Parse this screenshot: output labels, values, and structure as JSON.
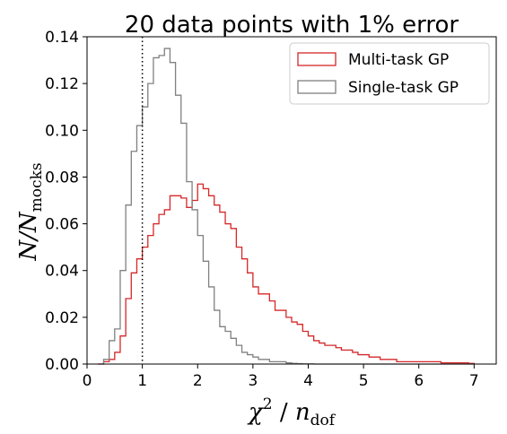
{
  "chart_data": {
    "type": "histogram",
    "title": "20 data points with 1% error",
    "xlabel": {
      "main": "χ",
      "sup": "2",
      "sep": " / ",
      "var": "n",
      "sub": "dof"
    },
    "ylabel": {
      "main": "N/N",
      "sub": "mocks"
    },
    "xlim": [
      0,
      7.4
    ],
    "ylim": [
      0,
      0.14
    ],
    "xticks": [
      0,
      1,
      2,
      3,
      4,
      5,
      6,
      7
    ],
    "yticks": [
      0.0,
      0.02,
      0.04,
      0.06,
      0.08,
      0.1,
      0.12,
      0.14
    ],
    "xtick_labels": [
      "0",
      "1",
      "2",
      "3",
      "4",
      "5",
      "6",
      "7"
    ],
    "ytick_labels": [
      "0.00",
      "0.02",
      "0.04",
      "0.06",
      "0.08",
      "0.10",
      "0.12",
      "0.14"
    ],
    "bin_edges": [
      0.2,
      0.3,
      0.4,
      0.5,
      0.6,
      0.7,
      0.8,
      0.9,
      1.0,
      1.1,
      1.2,
      1.3,
      1.4,
      1.5,
      1.6,
      1.7,
      1.8,
      1.9,
      2.0,
      2.1,
      2.2,
      2.3,
      2.4,
      2.5,
      2.6,
      2.7,
      2.8,
      2.9,
      3.0,
      3.1,
      3.2,
      3.3,
      3.4,
      3.5,
      3.6,
      3.7,
      3.8,
      3.9,
      4.0,
      4.1,
      4.2,
      4.3,
      4.4,
      4.5,
      4.6,
      4.7,
      4.8,
      4.9,
      5.0,
      5.1,
      5.2,
      5.3,
      5.4,
      5.5,
      5.6,
      5.7,
      5.8,
      5.9,
      6.0,
      6.1,
      6.2,
      6.3,
      6.4,
      6.5,
      6.6,
      6.7,
      6.8,
      6.9,
      7.0
    ],
    "series": [
      {
        "name": "Multi-task GP",
        "color": "#d62728",
        "values": [
          0.0,
          0.001,
          0.002,
          0.005,
          0.012,
          0.028,
          0.039,
          0.045,
          0.05,
          0.055,
          0.06,
          0.064,
          0.066,
          0.072,
          0.072,
          0.071,
          0.067,
          0.07,
          0.077,
          0.075,
          0.072,
          0.068,
          0.065,
          0.06,
          0.058,
          0.05,
          0.045,
          0.039,
          0.033,
          0.03,
          0.03,
          0.027,
          0.023,
          0.023,
          0.02,
          0.018,
          0.017,
          0.014,
          0.012,
          0.01,
          0.009,
          0.008,
          0.008,
          0.007,
          0.006,
          0.006,
          0.005,
          0.004,
          0.004,
          0.003,
          0.003,
          0.002,
          0.002,
          0.002,
          0.001,
          0.001,
          0.001,
          0.001,
          0.001,
          0.001,
          0.001,
          0.001,
          0.0005,
          0.0005,
          0.0005,
          0.0005,
          0.0005,
          0.0003
        ]
      },
      {
        "name": "Single-task GP",
        "color": "#808080",
        "values": [
          0.0,
          0.002,
          0.01,
          0.015,
          0.04,
          0.068,
          0.091,
          0.102,
          0.11,
          0.12,
          0.131,
          0.132,
          0.135,
          0.129,
          0.115,
          0.103,
          0.078,
          0.066,
          0.055,
          0.044,
          0.033,
          0.023,
          0.016,
          0.014,
          0.011,
          0.008,
          0.005,
          0.004,
          0.003,
          0.002,
          0.002,
          0.001,
          0.001,
          0.001,
          0.0005,
          0.0003,
          0.0002,
          0.0001,
          0.0001,
          0.0,
          0.0,
          0.0,
          0.0,
          0.0,
          0.0,
          0.0,
          0.0,
          0.0,
          0.0,
          0.0,
          0.0,
          0.0,
          0.0,
          0.0,
          0.0,
          0.0,
          0.0,
          0.0,
          0.0,
          0.0,
          0.0,
          0.0,
          0.0,
          0.0,
          0.0,
          0.0,
          0.0,
          0.0
        ]
      }
    ],
    "reference_line": {
      "x": 1.0,
      "style": "dotted",
      "color": "#000000"
    },
    "legend": {
      "placement": "top-right"
    },
    "grid": false
  }
}
